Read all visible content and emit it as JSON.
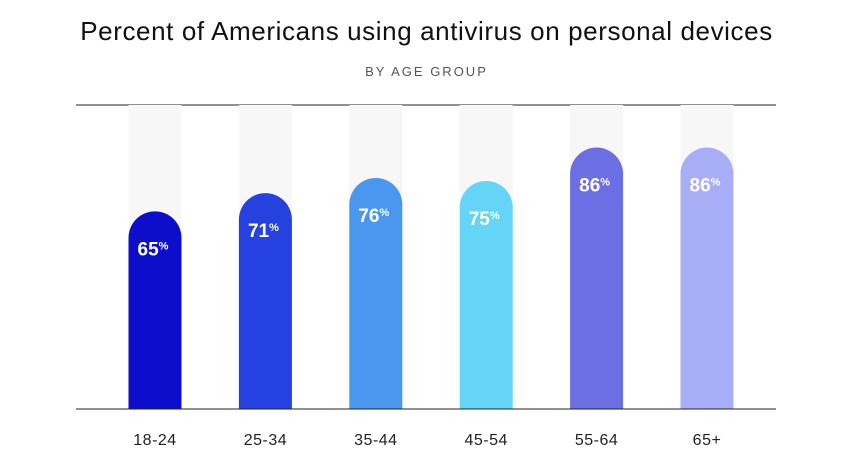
{
  "chart_data": {
    "type": "bar",
    "title": "Percent of Americans using antivirus on personal devices",
    "subtitle": "BY AGE GROUP",
    "categories": [
      "18-24",
      "25-34",
      "35-44",
      "45-54",
      "55-64",
      "65+"
    ],
    "values": [
      65,
      71,
      76,
      75,
      86,
      86
    ],
    "value_suffix": "%",
    "ylim": [
      0,
      100
    ],
    "grid": false,
    "colors": [
      "#0d0ecb",
      "#2542e0",
      "#4a97ef",
      "#64d4f7",
      "#6b6fe3",
      "#a8adf7"
    ],
    "track_color": "#f7f7f7",
    "axis_color": "#222222"
  }
}
